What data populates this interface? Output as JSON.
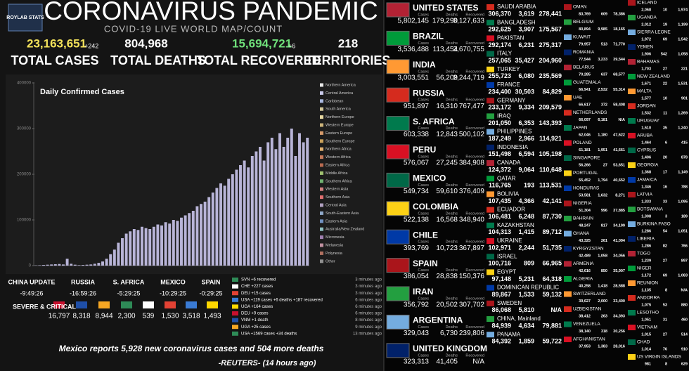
{
  "header": {
    "logo": "ROYLAB STATS",
    "title": "CORONAVIRUS PANDEMIC",
    "subtitle": "COVID-19 LIVE WORLD MAP/COUNT"
  },
  "totals": [
    {
      "value": "23,163,651",
      "delta": "+242",
      "label": "TOTAL CASES"
    },
    {
      "value": "804,968",
      "label": "TOTAL DEATHS"
    },
    {
      "value": "15,694,721",
      "delta": "+6",
      "label": "TOTAL RECOVERED"
    },
    {
      "value": "218",
      "label": "TERRITORIES"
    }
  ],
  "chart_data": {
    "type": "bar",
    "title": "Daily Confirmed Cases",
    "values": [
      500,
      800,
      1500,
      2000,
      2500,
      3000,
      3500,
      2500,
      15000,
      4000,
      2000,
      1000,
      1500,
      2000,
      2500,
      4000,
      6000,
      9000,
      15000,
      25000,
      35000,
      50000,
      60000,
      70000,
      75000,
      80000,
      78000,
      85000,
      82000,
      80000,
      85000,
      90000,
      88000,
      95000,
      92000,
      100000,
      98000,
      105000,
      110000,
      115000,
      120000,
      130000,
      135000,
      140000,
      150000,
      160000,
      170000,
      180000,
      175000,
      190000,
      200000,
      210000,
      220000,
      230000,
      215000,
      240000,
      250000,
      260000,
      230000,
      270000,
      280000,
      255000,
      290000,
      260000,
      280000,
      300000,
      240000,
      290000,
      270000,
      280000
    ],
    "color": "#b9b5d8",
    "ylim": [
      0,
      400000
    ],
    "yticks": [
      0,
      100000,
      200000,
      300000,
      400000
    ],
    "legend": [
      {
        "name": "Northern America",
        "color": "#e8e8e8"
      },
      {
        "name": "Central America",
        "color": "#c9c9e9"
      },
      {
        "name": "Caribbean",
        "color": "#a9b8e0"
      },
      {
        "name": "South America",
        "color": "#d4c79a"
      },
      {
        "name": "Northern Europe",
        "color": "#e6d7a0"
      },
      {
        "name": "Western Europe",
        "color": "#ccb37a"
      },
      {
        "name": "Eastern Europe",
        "color": "#d59a6a"
      },
      {
        "name": "Southern Europe",
        "color": "#c8a05a"
      },
      {
        "name": "Northern Africa",
        "color": "#e0b070"
      },
      {
        "name": "Western Africa",
        "color": "#c57a5a"
      },
      {
        "name": "Eastern Africa",
        "color": "#b86a50"
      },
      {
        "name": "Middle Africa",
        "color": "#a0c070"
      },
      {
        "name": "Southern Africa",
        "color": "#70b070"
      },
      {
        "name": "Western Asia",
        "color": "#d08080"
      },
      {
        "name": "Southern Asia",
        "color": "#e07070"
      },
      {
        "name": "Central Asia",
        "color": "#b0a0c0"
      },
      {
        "name": "South-Eastern Asia",
        "color": "#8fa8c8"
      },
      {
        "name": "Eastern Asia",
        "color": "#7090c0"
      },
      {
        "name": "Australia/New Zealand",
        "color": "#90c0c0"
      },
      {
        "name": "Micronesia",
        "color": "#a080b0"
      },
      {
        "name": "Melanesia",
        "color": "#c090a0"
      },
      {
        "name": "Polynesia",
        "color": "#b07060"
      },
      {
        "name": "Other",
        "color": "#909090"
      }
    ]
  },
  "clocks": [
    {
      "label": "CHINA UPDATE",
      "time": "-9:49:26"
    },
    {
      "label": "RUSSIA",
      "time": "-16:59:26"
    },
    {
      "label": "S. AFRICA",
      "time": "-5:29:25"
    },
    {
      "label": "MEXICO",
      "time": "-10:29:25"
    },
    {
      "label": "SPAIN",
      "time": "-0:29:25"
    }
  ],
  "severe": {
    "label": "SEVERE & CRITICAL",
    "values": [
      "16,797",
      "8,318",
      "8,944",
      "2,300",
      "539",
      "1,530",
      "3,518",
      "1,493"
    ]
  },
  "feed": [
    {
      "text": "SVN +6 recovered",
      "time": "3 minutes ago"
    },
    {
      "text": "CHE +227 cases",
      "time": "3 minutes ago"
    },
    {
      "text": "DEU +15 cases",
      "time": "3 minutes ago"
    },
    {
      "text": "USA +119 cases +6 deaths +187 recovered",
      "time": "6 minutes ago"
    },
    {
      "text": "UGA +164 cases",
      "time": "6 minutes ago"
    },
    {
      "text": "DEU +9 cases",
      "time": "6 minutes ago"
    },
    {
      "text": "VNM +1 death",
      "time": "8 minutes ago"
    },
    {
      "text": "UGA +25 cases",
      "time": "9 minutes ago"
    },
    {
      "text": "USA +1569 cases +34 deaths",
      "time": "13 minutes ago"
    }
  ],
  "ticker": {
    "headline": "Mexico reports 5,928 new coronavirus cases and 504 more deaths",
    "source": "-REUTERS- (14 hours ago)"
  },
  "countries": {
    "col_labels": [
      "Cases",
      "Deaths",
      "Recovered"
    ],
    "major": [
      {
        "name": "UNITED STATES",
        "cases": "5,802,145",
        "deaths": "179,290",
        "recovered": "3,127,633"
      },
      {
        "name": "BRAZIL",
        "cases": "3,536,488",
        "deaths": "113,454",
        "recovered": "2,670,755"
      },
      {
        "name": "INDIA",
        "cases": "3,003,551",
        "deaths": "56,209",
        "recovered": "2,244,719"
      },
      {
        "name": "RUSSIA",
        "cases": "951,897",
        "deaths": "16,310",
        "recovered": "767,477"
      },
      {
        "name": "S. AFRICA",
        "cases": "603,338",
        "deaths": "12,843",
        "recovered": "500,102"
      },
      {
        "name": "PERU",
        "cases": "576,067",
        "deaths": "27,245",
        "recovered": "384,908"
      },
      {
        "name": "MEXICO",
        "cases": "549,734",
        "deaths": "59,610",
        "recovered": "376,409"
      },
      {
        "name": "COLOMBIA",
        "cases": "522,138",
        "deaths": "16,568",
        "recovered": "348,940"
      },
      {
        "name": "CHILE",
        "cases": "393,769",
        "deaths": "10,723",
        "recovered": "367,897"
      },
      {
        "name": "SPAIN",
        "cases": "386,054",
        "deaths": "28,838",
        "recovered": "150,376"
      },
      {
        "name": "IRAN",
        "cases": "356,792",
        "deaths": "20,502",
        "recovered": "307,702"
      },
      {
        "name": "ARGENTINA",
        "cases": "329,043",
        "deaths": "6,730",
        "recovered": "239,806"
      },
      {
        "name": "UNITED KINGDOM",
        "cases": "323,313",
        "deaths": "41,405",
        "recovered": "N/A"
      }
    ],
    "mid": [
      {
        "name": "SAUDI ARABIA",
        "cases": "306,370",
        "deaths": "3,619",
        "recovered": "278,441"
      },
      {
        "name": "BANGLADESH",
        "cases": "292,625",
        "deaths": "3,907",
        "recovered": "175,567"
      },
      {
        "name": "PAKISTAN",
        "cases": "292,174",
        "deaths": "6,231",
        "recovered": "275,317"
      },
      {
        "name": "ITALY",
        "cases": "257,065",
        "deaths": "35,427",
        "recovered": "204,960"
      },
      {
        "name": "TURKEY",
        "cases": "255,723",
        "deaths": "6,080",
        "recovered": "235,569"
      },
      {
        "name": "FRANCE",
        "cases": "234,400",
        "deaths": "30,503",
        "recovered": "84,829"
      },
      {
        "name": "GERMANY",
        "cases": "233,172",
        "deaths": "9,334",
        "recovered": "209,579"
      },
      {
        "name": "IRAQ",
        "cases": "201,050",
        "deaths": "6,353",
        "recovered": "143,393"
      },
      {
        "name": "PHILIPPINES",
        "cases": "187,249",
        "deaths": "2,966",
        "recovered": "114,921"
      },
      {
        "name": "INDONESIA",
        "cases": "151,498",
        "deaths": "6,594",
        "recovered": "105,198"
      },
      {
        "name": "CANADA",
        "cases": "124,372",
        "deaths": "9,064",
        "recovered": "110,648"
      },
      {
        "name": "QATAR",
        "cases": "116,765",
        "deaths": "193",
        "recovered": "113,531"
      },
      {
        "name": "BOLIVIA",
        "cases": "107,435",
        "deaths": "4,366",
        "recovered": "42,141"
      },
      {
        "name": "ECUADOR",
        "cases": "106,481",
        "deaths": "6,248",
        "recovered": "87,730"
      },
      {
        "name": "KAZAKHSTAN",
        "cases": "104,313",
        "deaths": "1,415",
        "recovered": "89,712"
      },
      {
        "name": "UKRAINE",
        "cases": "102,971",
        "deaths": "2,244",
        "recovered": "51,735"
      },
      {
        "name": "ISRAEL",
        "cases": "100,716",
        "deaths": "809",
        "recovered": "66,965"
      },
      {
        "name": "EGYPT",
        "cases": "97,148",
        "deaths": "5,231",
        "recovered": "64,318"
      },
      {
        "name": "DOMINICAN REPUBLIC",
        "cases": "89,867",
        "deaths": "1,533",
        "recovered": "59,132"
      },
      {
        "name": "SWEDEN",
        "cases": "86,068",
        "deaths": "5,810",
        "recovered": "N/A"
      },
      {
        "name": "CHINA, Mainland",
        "cases": "84,939",
        "deaths": "4,634",
        "recovered": "79,881"
      },
      {
        "name": "PANAMA",
        "cases": "84,392",
        "deaths": "1,859",
        "recovered": "59,722"
      }
    ],
    "minor": [
      {
        "name": "OMAN",
        "cases": "83,769",
        "deaths": "609",
        "recovered": "78,386"
      },
      {
        "name": "BELGIUM",
        "cases": "80,894",
        "deaths": "9,985",
        "recovered": "18,165"
      },
      {
        "name": "KUWAIT",
        "cases": "79,957",
        "deaths": "513",
        "recovered": "71,770"
      },
      {
        "name": "ROMANIA",
        "cases": "77,544",
        "deaths": "3,233",
        "recovered": "39,544"
      },
      {
        "name": "BELARUS",
        "cases": "70,285",
        "deaths": "637",
        "recovered": "68,577"
      },
      {
        "name": "GUATEMALA",
        "cases": "66,941",
        "deaths": "2,532",
        "recovered": "55,314"
      },
      {
        "name": "UAE",
        "cases": "66,617",
        "deaths": "372",
        "recovered": "58,408"
      },
      {
        "name": "NETHERLANDS",
        "cases": "66,097",
        "deaths": "6,181",
        "recovered": "N/A"
      },
      {
        "name": "JAPAN",
        "cases": "62,046",
        "deaths": "1,180",
        "recovered": "47,622"
      },
      {
        "name": "POLAND",
        "cases": "61,181",
        "deaths": "1,951",
        "recovered": "41,661"
      },
      {
        "name": "SINGAPORE",
        "cases": "56,266",
        "deaths": "27",
        "recovered": "53,651"
      },
      {
        "name": "PORTUGAL",
        "cases": "55,452",
        "deaths": "1,794",
        "recovered": "40,652"
      },
      {
        "name": "HONDURAS",
        "cases": "53,581",
        "deaths": "1,632",
        "recovered": "8,271"
      },
      {
        "name": "NIGERIA",
        "cases": "51,304",
        "deaths": "996",
        "recovered": "37,885"
      },
      {
        "name": "BAHRAIN",
        "cases": "48,247",
        "deaths": "817",
        "recovered": "34,199"
      },
      {
        "name": "GHANA",
        "cases": "43,325",
        "deaths": "261",
        "recovered": "41,094"
      },
      {
        "name": "KYRGYZSTAN",
        "cases": "42,489",
        "deaths": "1,058",
        "recovered": "34,056"
      },
      {
        "name": "ARMENIA",
        "cases": "42,616",
        "deaths": "850",
        "recovered": "35,907"
      },
      {
        "name": "ALGERIA",
        "cases": "40,258",
        "deaths": "1,418",
        "recovered": "28,588"
      },
      {
        "name": "SWITZERLAND",
        "cases": "39,627",
        "deaths": "2,000",
        "recovered": "33,400"
      },
      {
        "name": "UZBEKISTAN",
        "cases": "38,412",
        "deaths": "263",
        "recovered": "34,393"
      },
      {
        "name": "VENEZUELA",
        "cases": "38,140",
        "deaths": "318",
        "recovered": "30,256"
      },
      {
        "name": "AFGHANISTAN",
        "cases": "37,953",
        "deaths": "1,383",
        "recovered": "28,016"
      }
    ],
    "small": [
      {
        "name": "ICELAND",
        "cases": "2,068",
        "deaths": "10",
        "recovered": "1,974"
      },
      {
        "name": "UGANDA",
        "cases": "2,012",
        "deaths": "19",
        "recovered": "1,199"
      },
      {
        "name": "SIERRA LEONE",
        "cases": "1,972",
        "deaths": "69",
        "recovered": "1,542"
      },
      {
        "name": "YEMEN",
        "cases": "1,906",
        "deaths": "542",
        "recovered": "1,058"
      },
      {
        "name": "BAHAMAS",
        "cases": "1,703",
        "deaths": "27",
        "recovered": "221"
      },
      {
        "name": "NEW ZEALAND",
        "cases": "1,671",
        "deaths": "22",
        "recovered": "1,531"
      },
      {
        "name": "MALTA",
        "cases": "1,577",
        "deaths": "10",
        "recovered": "901"
      },
      {
        "name": "JORDAN",
        "cases": "1,532",
        "deaths": "11",
        "recovered": "1,269"
      },
      {
        "name": "URUGUAY",
        "cases": "1,510",
        "deaths": "35",
        "recovered": "1,240"
      },
      {
        "name": "ARUBA",
        "cases": "1,464",
        "deaths": "6",
        "recovered": "415"
      },
      {
        "name": "CYPRUS",
        "cases": "1,406",
        "deaths": "20",
        "recovered": "878"
      },
      {
        "name": "GEORGIA",
        "cases": "1,368",
        "deaths": "17",
        "recovered": "1,149"
      },
      {
        "name": "JAMAICA",
        "cases": "1,346",
        "deaths": "16",
        "recovered": "788"
      },
      {
        "name": "LATVIA",
        "cases": "1,333",
        "deaths": "33",
        "recovered": "1,095"
      },
      {
        "name": "BOTSWANA",
        "cases": "1,308",
        "deaths": "3",
        "recovered": "189"
      },
      {
        "name": "BURKINA FASO",
        "cases": "1,286",
        "deaths": "54",
        "recovered": "1,051"
      },
      {
        "name": "LIBERIA",
        "cases": "1,286",
        "deaths": "82",
        "recovered": "766"
      },
      {
        "name": "TOGO",
        "cases": "1,239",
        "deaths": "27",
        "recovered": "897"
      },
      {
        "name": "NIGER",
        "cases": "1,172",
        "deaths": "69",
        "recovered": "1,083"
      },
      {
        "name": "REUNION",
        "cases": "1,135",
        "deaths": "8",
        "recovered": "N/A"
      },
      {
        "name": "ANDORRA",
        "cases": "1,075",
        "deaths": "53",
        "recovered": "880"
      },
      {
        "name": "LESOTHO",
        "cases": "1,051",
        "deaths": "31",
        "recovered": "460"
      },
      {
        "name": "VIETNAM",
        "cases": "1,015",
        "deaths": "27",
        "recovered": "514"
      },
      {
        "name": "CHAD",
        "cases": "1,014",
        "deaths": "76",
        "recovered": "910"
      },
      {
        "name": "US VIRGIN ISLANDS",
        "cases": "981",
        "deaths": "8",
        "recovered": "629"
      }
    ]
  }
}
